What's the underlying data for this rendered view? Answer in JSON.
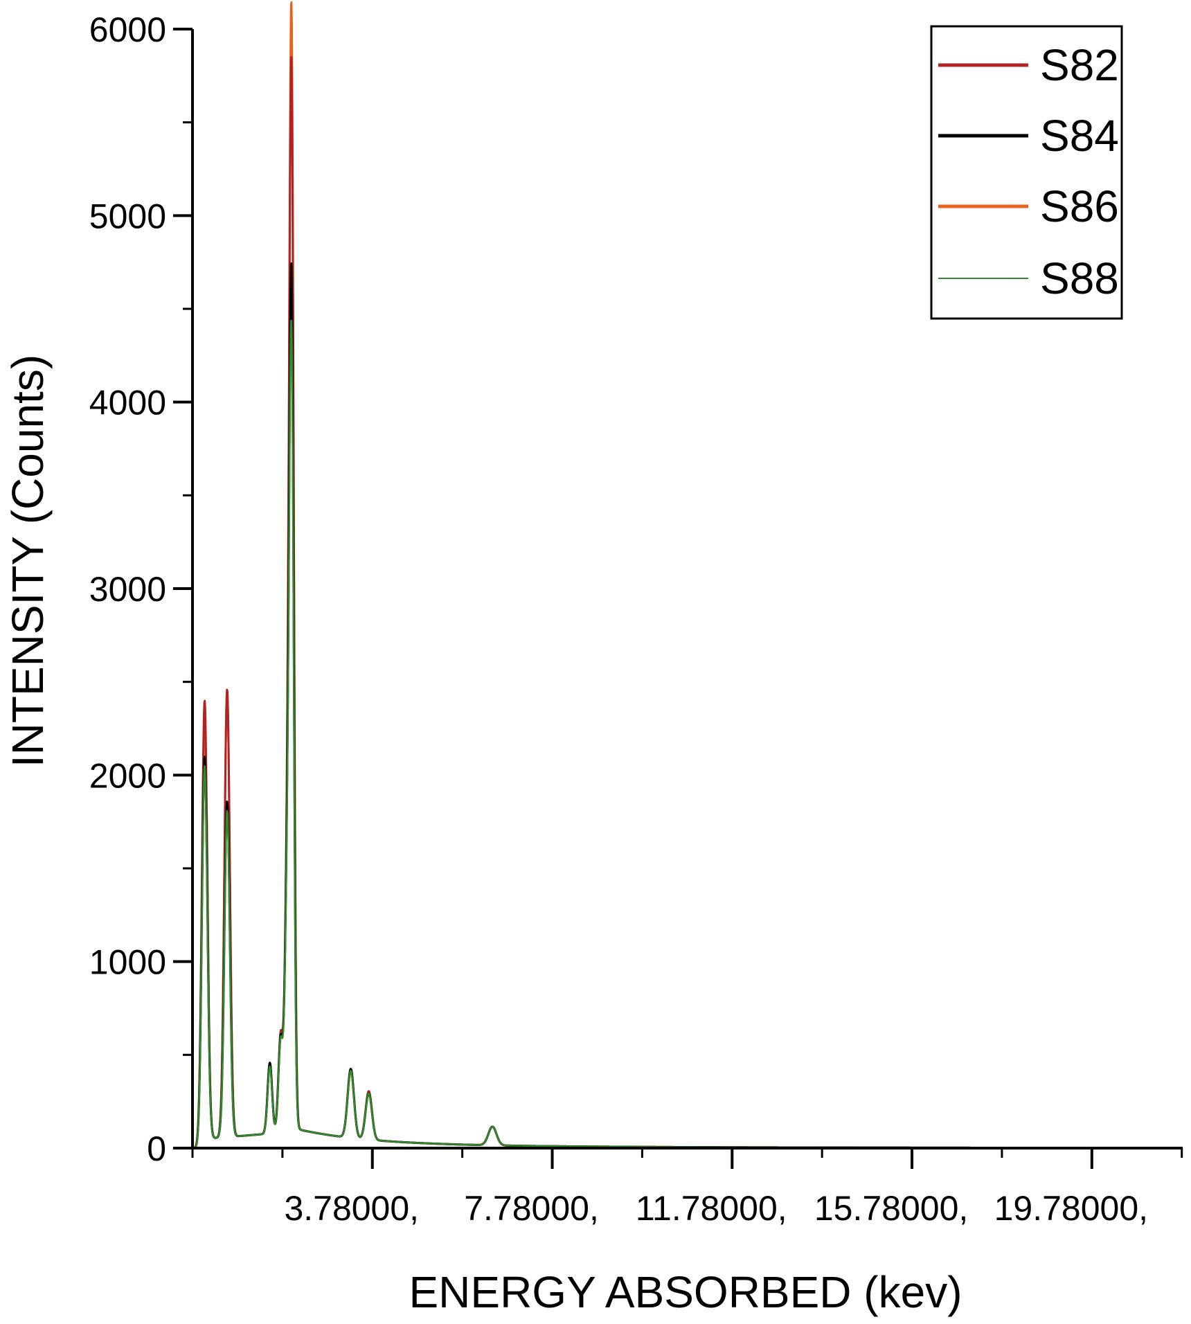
{
  "chart_data": {
    "type": "line",
    "xlabel": "ENERGY ABSORBED (kev)",
    "ylabel": "INTENSITY (Counts)",
    "xlim": [
      -0.22,
      21.8
    ],
    "ylim": [
      0,
      6000
    ],
    "yticks": [
      0,
      1000,
      2000,
      3000,
      4000,
      5000,
      6000
    ],
    "ytick_labels": [
      "0",
      "1000",
      "2000",
      "3000",
      "4000",
      "5000",
      "6000"
    ],
    "xticks": [
      3.78,
      7.78,
      11.78,
      15.78,
      19.78
    ],
    "xtick_labels": [
      "3.78000,",
      "7.78000,",
      "11.78000,",
      "15.78000,",
      "19.78000,"
    ],
    "grid": false,
    "legend_position": "top-right",
    "colors": {
      "S82": "#b22222",
      "S84": "#000000",
      "S86": "#e8641e",
      "S88": "#2e8b2e"
    },
    "series": [
      {
        "name": "S82",
        "peaks": [
          {
            "x": 0.05,
            "y": 2400
          },
          {
            "x": 0.55,
            "y": 2400
          },
          {
            "x": 1.5,
            "y": 380
          },
          {
            "x": 1.74,
            "y": 520
          },
          {
            "x": 1.88,
            "y": 1200
          },
          {
            "x": 1.98,
            "y": 5600
          },
          {
            "x": 3.3,
            "y": 370
          },
          {
            "x": 3.7,
            "y": 260
          },
          {
            "x": 6.45,
            "y": 100
          }
        ]
      },
      {
        "name": "S84",
        "peaks": [
          {
            "x": 0.05,
            "y": 2100
          },
          {
            "x": 0.55,
            "y": 1800
          },
          {
            "x": 1.5,
            "y": 380
          },
          {
            "x": 1.74,
            "y": 500
          },
          {
            "x": 1.88,
            "y": 1150
          },
          {
            "x": 1.98,
            "y": 4500
          },
          {
            "x": 3.3,
            "y": 370
          },
          {
            "x": 3.7,
            "y": 250
          },
          {
            "x": 6.45,
            "y": 100
          }
        ]
      },
      {
        "name": "S86",
        "peaks": [
          {
            "x": 0.05,
            "y": 2300
          },
          {
            "x": 0.55,
            "y": 2400
          },
          {
            "x": 1.5,
            "y": 370
          },
          {
            "x": 1.74,
            "y": 510
          },
          {
            "x": 1.88,
            "y": 1150
          },
          {
            "x": 1.98,
            "y": 5900
          },
          {
            "x": 3.3,
            "y": 360
          },
          {
            "x": 3.7,
            "y": 260
          },
          {
            "x": 6.45,
            "y": 100
          }
        ]
      },
      {
        "name": "S88",
        "peaks": [
          {
            "x": 0.05,
            "y": 2050
          },
          {
            "x": 0.55,
            "y": 1750
          },
          {
            "x": 1.5,
            "y": 360
          },
          {
            "x": 1.74,
            "y": 490
          },
          {
            "x": 1.88,
            "y": 1100
          },
          {
            "x": 1.98,
            "y": 4200
          },
          {
            "x": 3.3,
            "y": 360
          },
          {
            "x": 3.7,
            "y": 250
          },
          {
            "x": 6.45,
            "y": 100
          }
        ]
      }
    ]
  }
}
